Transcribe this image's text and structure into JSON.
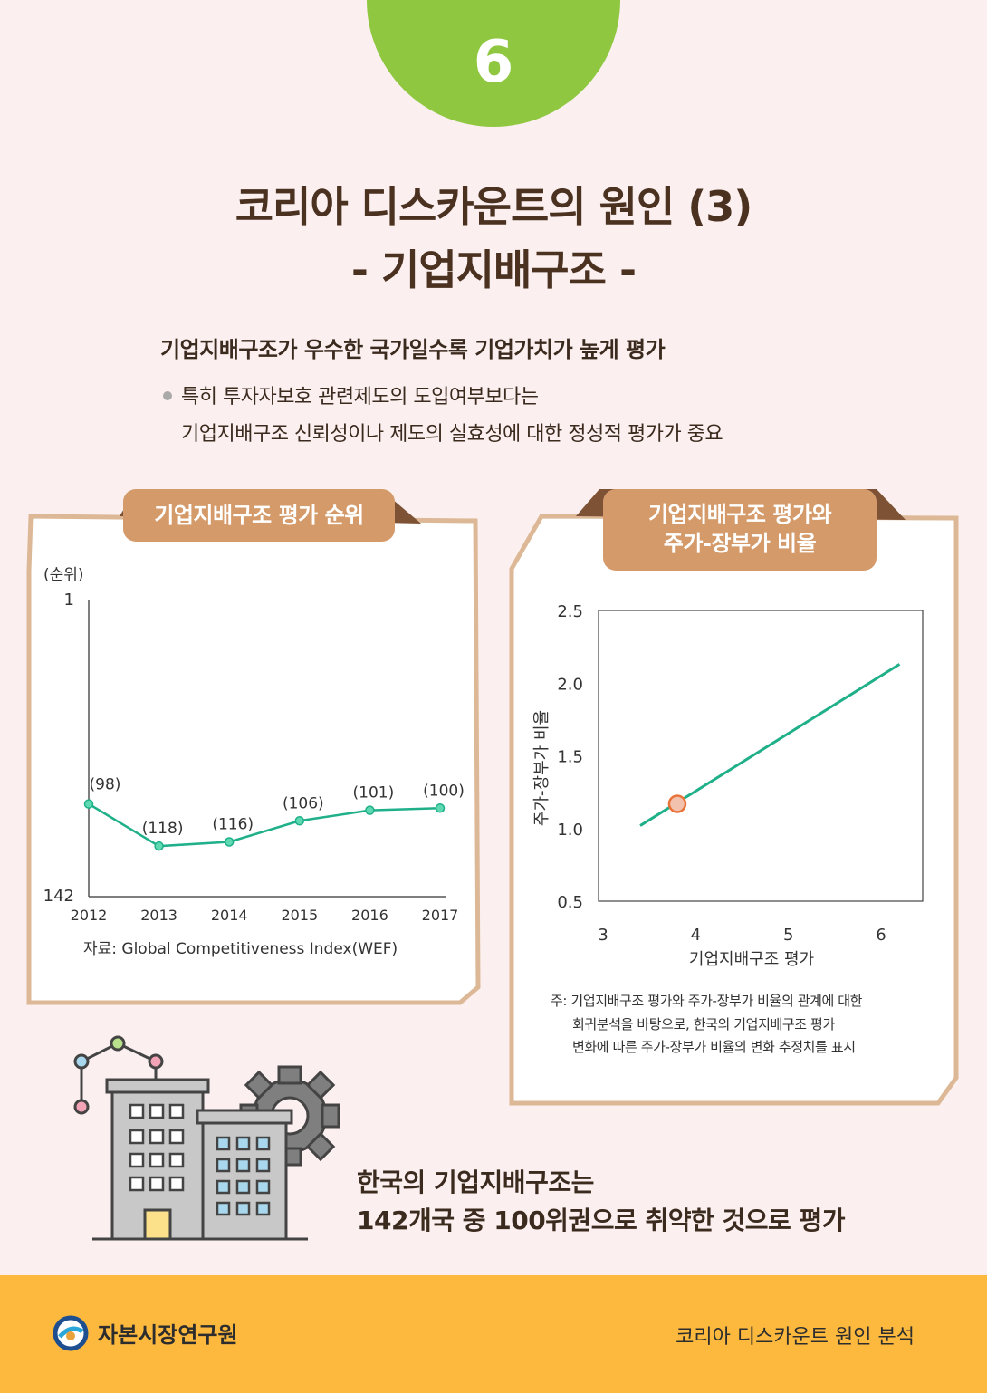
{
  "badge": {
    "number": "6"
  },
  "title": {
    "line1": "코리아 디스카운트의 원인 (3)",
    "line2": "- 기업지배구조 -"
  },
  "lead": "기업지배구조가 우수한 국가일수록 기업가치가 높게 평가",
  "detail": {
    "line1": "특히 투자자보호 관련제도의 도입여부보다는",
    "line2": "기업지배구조 신뢰성이나 제도의 실효성에 대한 정성적 평가가 중요"
  },
  "panel_left": {
    "title": "기업지배구조 평가 순위",
    "source": "자료: Global Competitiveness Index(WEF)"
  },
  "panel_right": {
    "title_line1": "기업지배구조 평가와",
    "title_line2": "주가-장부가 비율",
    "note_line1": "주: 기업지배구조 평가와 주가-장부가 비율의 관계에 대한",
    "note_line2": "회귀분석을 바탕으로, 한국의 기업지배구조 평가",
    "note_line3": "변화에 따른 주가-장부가 비율의 변화 추정치를 표시"
  },
  "conclusion": {
    "line1": "한국의 기업지배구조는",
    "line2": "142개국 중 100위권으로 취약한 것으로 평가"
  },
  "footer": {
    "org": "자본시장연구원",
    "series": "코리아 디스카운트 원인 분석"
  },
  "colors": {
    "accent_green": "#8fc741",
    "line_teal": "#1fb08a",
    "panel_tag": "#d49a6a",
    "footer": "#fdb93e"
  },
  "chart_data": [
    {
      "type": "line",
      "unit_label": "(순위)",
      "x": [
        "2012",
        "2013",
        "2014",
        "2015",
        "2016",
        "2017"
      ],
      "values": [
        98,
        118,
        116,
        106,
        101,
        100
      ],
      "data_labels": [
        "(98)",
        "(118)",
        "(116)",
        "(106)",
        "(101)",
        "(100)"
      ],
      "y_ticks": [
        "1",
        "142"
      ],
      "ylim": [
        1,
        142
      ],
      "y_inverted": true
    },
    {
      "type": "line",
      "xlabel": "기업지배구조 평가",
      "ylabel": "주가-장부가 비율",
      "x_ticks": [
        "3",
        "4",
        "5",
        "6"
      ],
      "y_ticks": [
        "0.5",
        "1.0",
        "1.5",
        "2.0",
        "2.5"
      ],
      "xlim": [
        2.95,
        6.45
      ],
      "ylim": [
        0.5,
        2.5
      ],
      "line": {
        "x": [
          3.4,
          6.2
        ],
        "y": [
          1.02,
          2.13
        ]
      },
      "highlight_point": {
        "x": 3.8,
        "y": 1.17
      }
    }
  ]
}
